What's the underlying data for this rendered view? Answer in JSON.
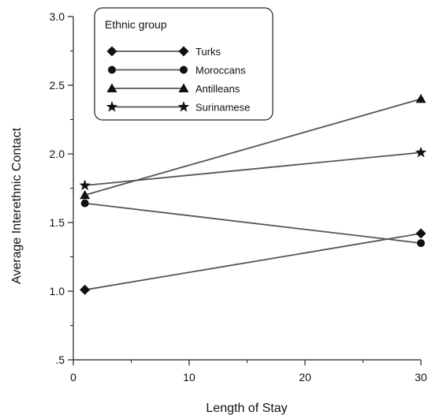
{
  "chart_data": {
    "type": "line",
    "xlabel": "Length of Stay",
    "ylabel": "Average Interethnic Contact",
    "xlim": [
      0,
      30
    ],
    "ylim": [
      0.5,
      3.0
    ],
    "x_ticks": [
      0,
      10,
      20,
      30
    ],
    "y_ticks": [
      0.5,
      1.0,
      1.5,
      2.0,
      2.5,
      3.0
    ],
    "x_tick_labels": [
      "0",
      "10",
      "20",
      "30"
    ],
    "y_tick_labels": [
      ".5",
      "1.0",
      "1.5",
      "2.0",
      "2.5",
      "3.0"
    ],
    "grid": false,
    "legend": {
      "title": "Ethnic group",
      "position": "top-left"
    },
    "line_color": "#555555",
    "series": [
      {
        "name": "Turks",
        "marker": "diamond",
        "x": [
          1,
          30
        ],
        "y": [
          1.01,
          1.42
        ]
      },
      {
        "name": "Moroccans",
        "marker": "circle",
        "x": [
          1,
          30
        ],
        "y": [
          1.64,
          1.35
        ]
      },
      {
        "name": "Antilleans",
        "marker": "triangle",
        "x": [
          1,
          30
        ],
        "y": [
          1.7,
          2.4
        ]
      },
      {
        "name": "Surinamese",
        "marker": "star",
        "x": [
          1,
          30
        ],
        "y": [
          1.77,
          2.01
        ]
      }
    ]
  }
}
